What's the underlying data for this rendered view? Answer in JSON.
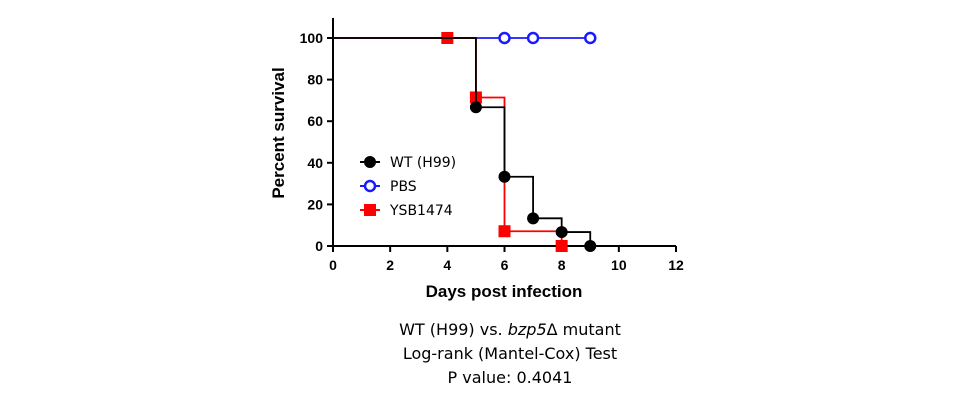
{
  "chart_data": {
    "type": "line",
    "subtype": "kaplan-meier survival",
    "xlabel": "Days post infection",
    "ylabel": "Percent survival",
    "xlim": [
      0,
      12
    ],
    "ylim": [
      0,
      100
    ],
    "xticks": [
      0,
      2,
      4,
      6,
      8,
      10,
      12
    ],
    "yticks": [
      0,
      20,
      40,
      60,
      80,
      100
    ],
    "grid": false,
    "legend_position": "center-left",
    "series": [
      {
        "name": "WT (H99)",
        "color": "#000000",
        "marker": "filled-circle",
        "steps": [
          [
            0,
            100
          ],
          [
            5,
            66.7
          ],
          [
            6,
            33.3
          ],
          [
            7,
            13.3
          ],
          [
            8,
            6.7
          ],
          [
            9,
            0
          ]
        ],
        "points": [
          [
            5,
            66.7
          ],
          [
            6,
            33.3
          ],
          [
            7,
            13.3
          ],
          [
            8,
            6.7
          ],
          [
            9,
            0
          ]
        ]
      },
      {
        "name": "PBS",
        "color": "#1a1aff",
        "marker": "open-circle",
        "steps": [
          [
            0,
            100
          ],
          [
            9,
            100
          ]
        ],
        "points": [
          [
            6,
            100
          ],
          [
            7,
            100
          ],
          [
            9,
            100
          ]
        ]
      },
      {
        "name": "YSB1474",
        "color": "#ff0000",
        "marker": "filled-square",
        "steps": [
          [
            0,
            100
          ],
          [
            5,
            71.4
          ],
          [
            6,
            7.1
          ],
          [
            8,
            0
          ]
        ],
        "points": [
          [
            4,
            100
          ],
          [
            5,
            71.4
          ],
          [
            6,
            7.1
          ],
          [
            8,
            0
          ]
        ]
      }
    ]
  },
  "caption": {
    "line1_prefix": "WT (H99) vs. ",
    "line1_gene": "bzp5",
    "line1_suffix": "Δ mutant",
    "line2": "Log-rank (Mantel-Cox) Test",
    "line3": "P value: 0.4041"
  }
}
